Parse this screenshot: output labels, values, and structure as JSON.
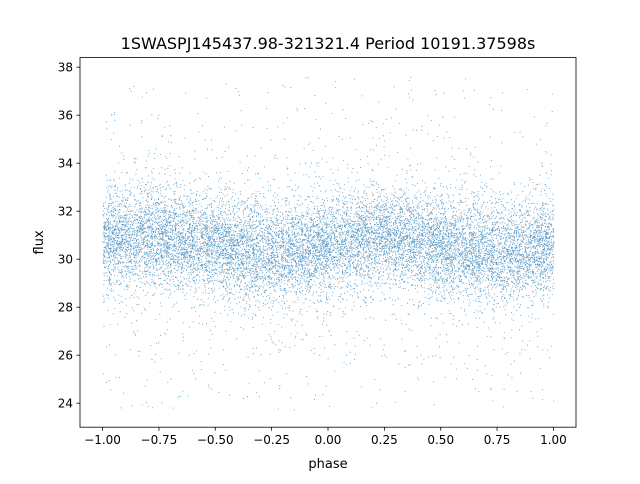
{
  "chart_data": {
    "type": "scatter",
    "title": "1SWASPJ145437.98-321321.4 Period 10191.37598s",
    "xlabel": "phase",
    "ylabel": "flux",
    "xlim": [
      -1.1,
      1.1
    ],
    "ylim": [
      23.0,
      38.4
    ],
    "xticks": [
      -1.0,
      -0.75,
      -0.5,
      -0.25,
      0.0,
      0.25,
      0.5,
      0.75,
      1.0
    ],
    "xtick_labels": [
      "−1.00",
      "−0.75",
      "−0.50",
      "−0.25",
      "0.00",
      "0.25",
      "0.50",
      "0.75",
      "1.00"
    ],
    "yticks": [
      24,
      26,
      28,
      30,
      32,
      34,
      36,
      38
    ],
    "ytick_labels": [
      "24",
      "26",
      "28",
      "30",
      "32",
      "34",
      "36",
      "38"
    ],
    "grid": false,
    "point_color": "#1f77b4",
    "data_range": {
      "x": [
        -1.0,
        1.0
      ],
      "y": [
        23.7,
        37.6
      ]
    },
    "core_flux_curve": {
      "phase": [
        -1.0,
        -0.75,
        -0.5,
        -0.25,
        0.0,
        0.25,
        0.5,
        0.75,
        1.0
      ],
      "flux": [
        30.8,
        31.0,
        30.6,
        30.2,
        30.6,
        31.0,
        30.6,
        30.2,
        30.6
      ]
    },
    "approx_point_count": 40000
  }
}
